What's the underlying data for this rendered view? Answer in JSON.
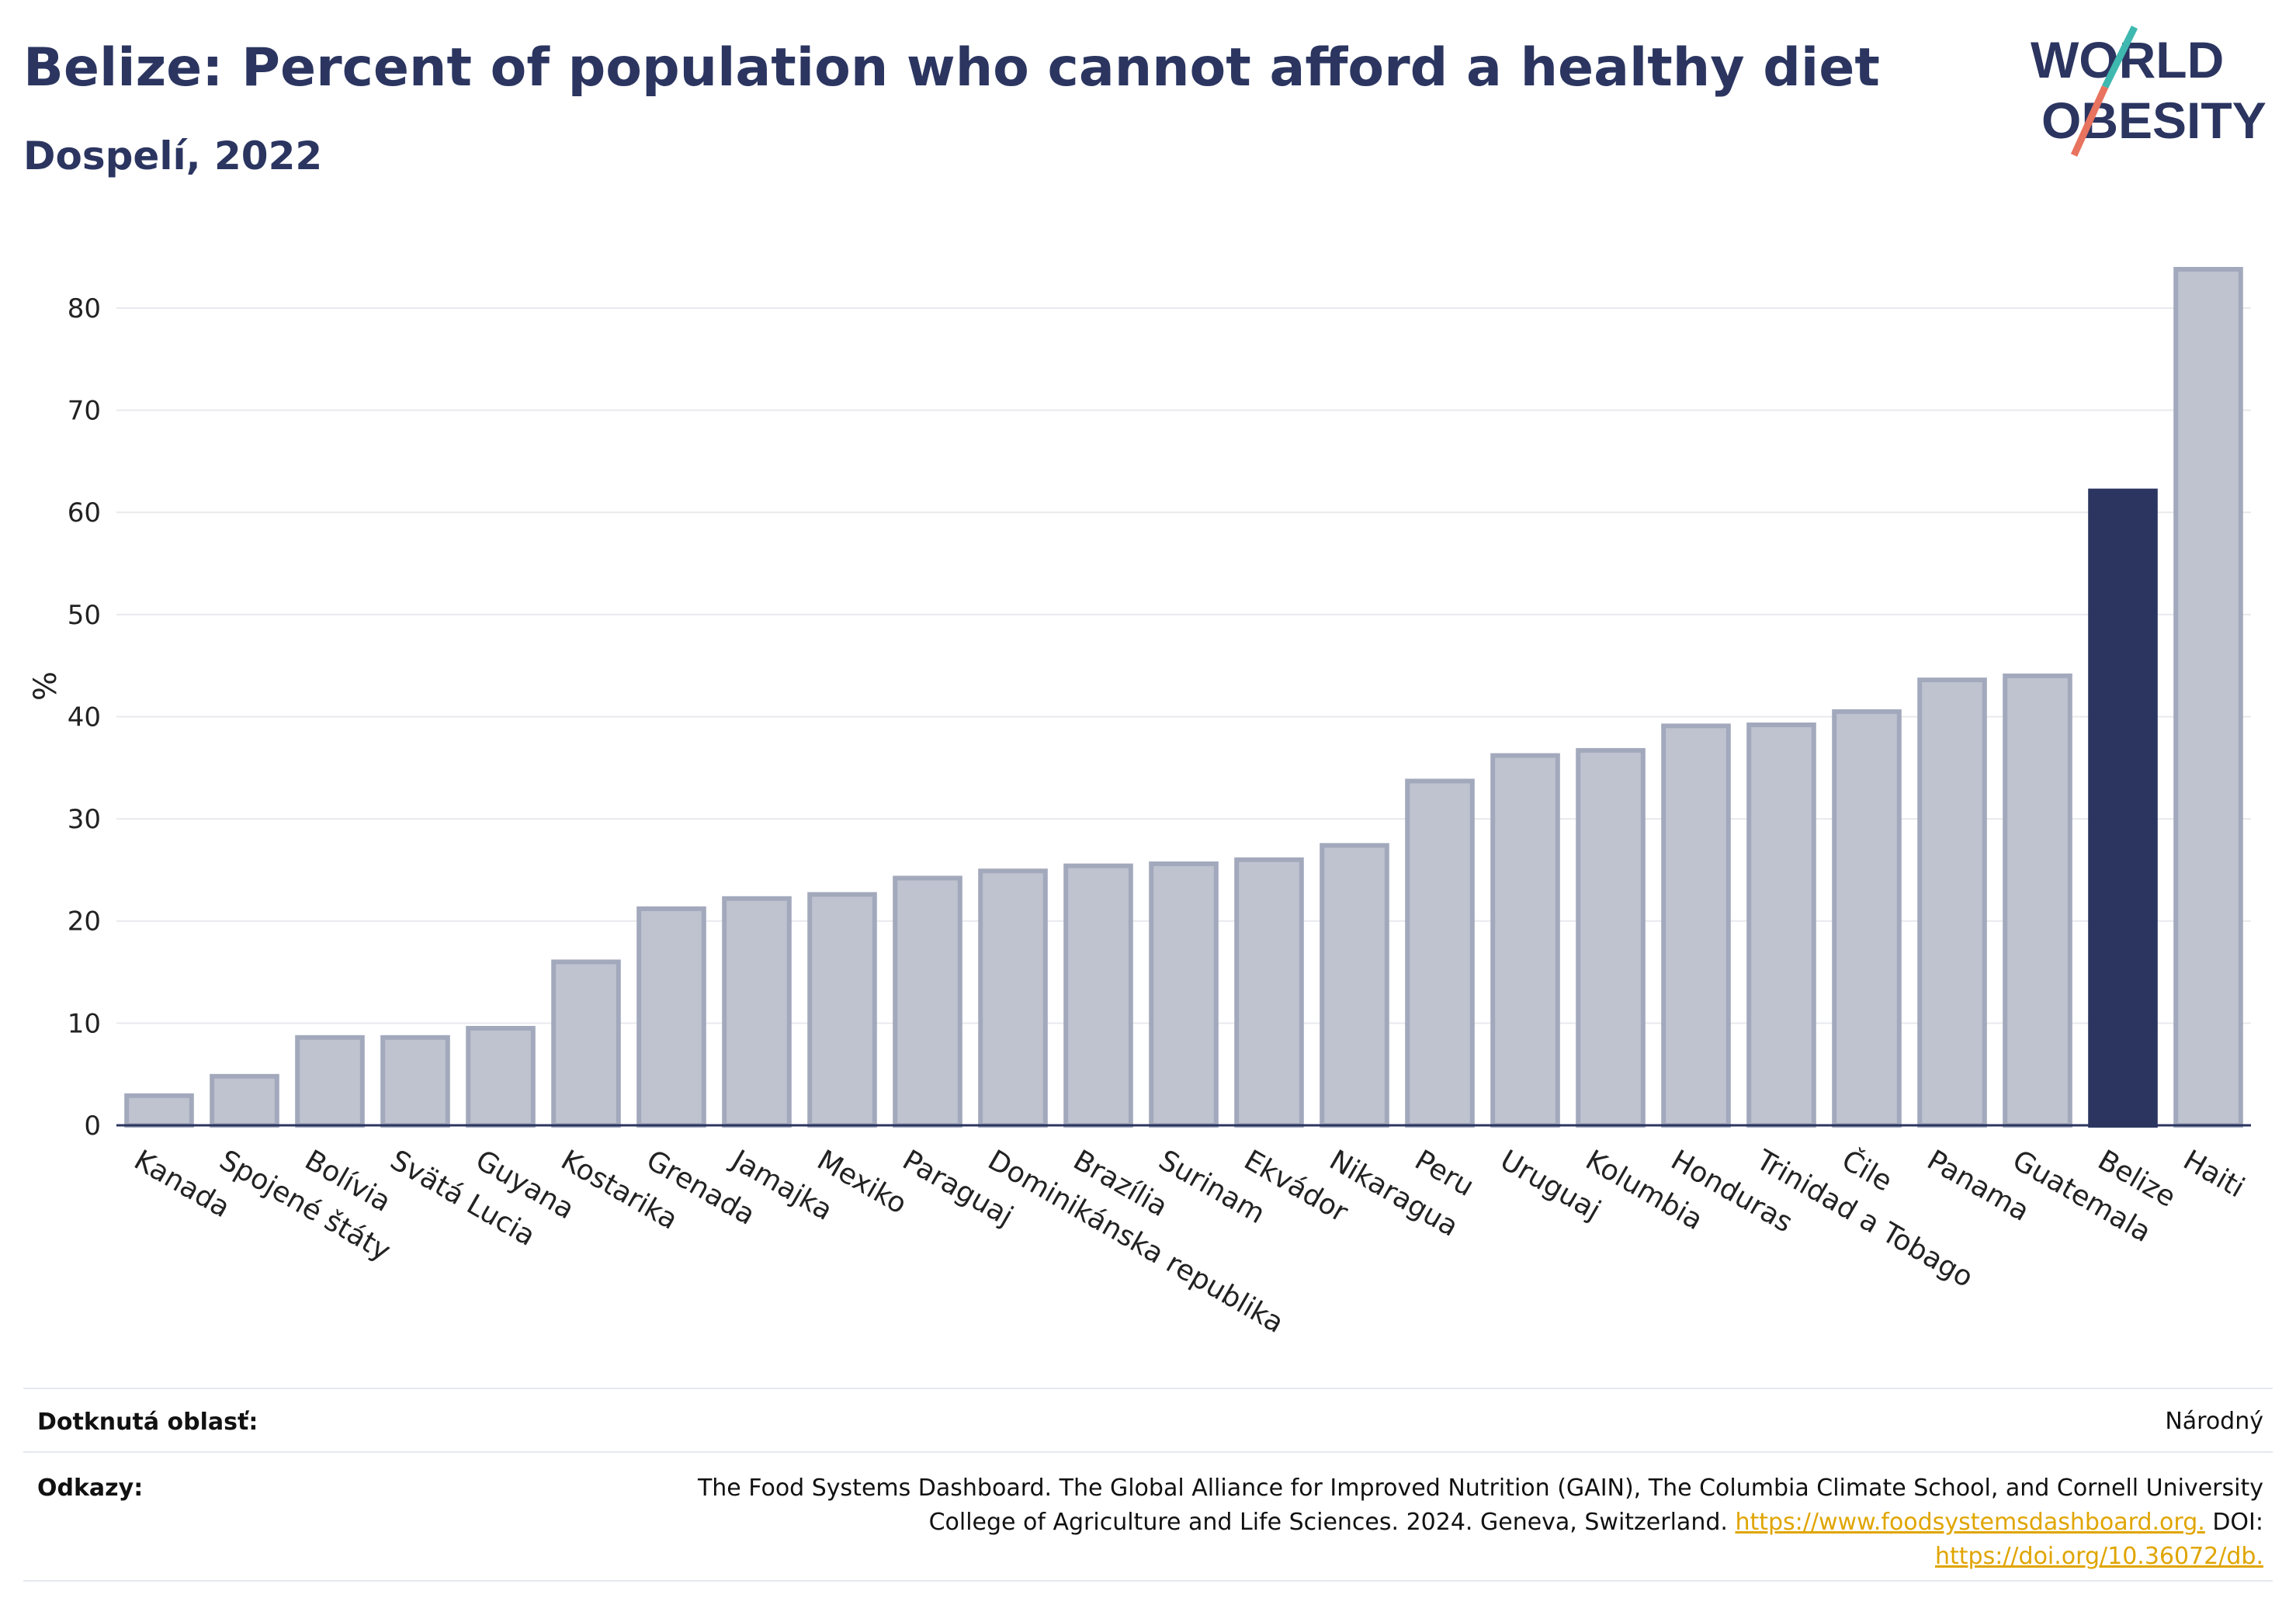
{
  "header": {
    "title": "Belize: Percent of population who cannot afford a healthy diet",
    "subtitle": "Dospelí, 2022"
  },
  "logo": {
    "line1": "WORLD",
    "line2": "OBESITY"
  },
  "colors": {
    "bar": "#bfc3d0",
    "bar_border": "#a3a9bc",
    "highlight": "#2b3560",
    "grid": "#e8e9ee",
    "axis": "#2b3560",
    "accent_teal": "#3fb8b0",
    "accent_red": "#e8735f"
  },
  "chart_data": {
    "type": "bar",
    "ylabel": "%",
    "ylim": [
      0,
      86
    ],
    "yticks": [
      0,
      10,
      20,
      30,
      40,
      50,
      60,
      70,
      80
    ],
    "grid": true,
    "highlight": "Belize",
    "categories": [
      "Kanada",
      "Spojené štáty",
      "Bolívia",
      "Svätá Lucia",
      "Guyana",
      "Kostarika",
      "Grenada",
      "Jamajka",
      "Mexiko",
      "Paraguaj",
      "Dominikánska republika",
      "Brazília",
      "Surinam",
      "Ekvádor",
      "Nikaragua",
      "Peru",
      "Uruguaj",
      "Kolumbia",
      "Honduras",
      "Trinidad a Tobago",
      "Čile",
      "Panama",
      "Guatemala",
      "Belize",
      "Haiti"
    ],
    "values": [
      2.9,
      4.8,
      8.6,
      8.6,
      9.5,
      16.0,
      21.2,
      22.2,
      22.6,
      24.2,
      24.9,
      25.4,
      25.6,
      26.0,
      27.4,
      33.7,
      36.2,
      36.7,
      39.1,
      39.2,
      40.5,
      43.6,
      44.0,
      62.1,
      83.8
    ]
  },
  "footer": {
    "area_label": "Dotknutá oblasť:",
    "area_value": "Národný",
    "refs_label": "Odkazy:",
    "refs_text1": "The Food Systems Dashboard. The Global Alliance for Improved Nutrition (GAIN), The Columbia Climate School, and Cornell University",
    "refs_text2": "College of Agriculture and Life Sciences. 2024. Geneva, Switzerland.",
    "refs_link1": "https://www.foodsystemsdashboard.org.",
    "refs_doi": "DOI:",
    "refs_link2": "https://doi.org/10.36072/db."
  }
}
